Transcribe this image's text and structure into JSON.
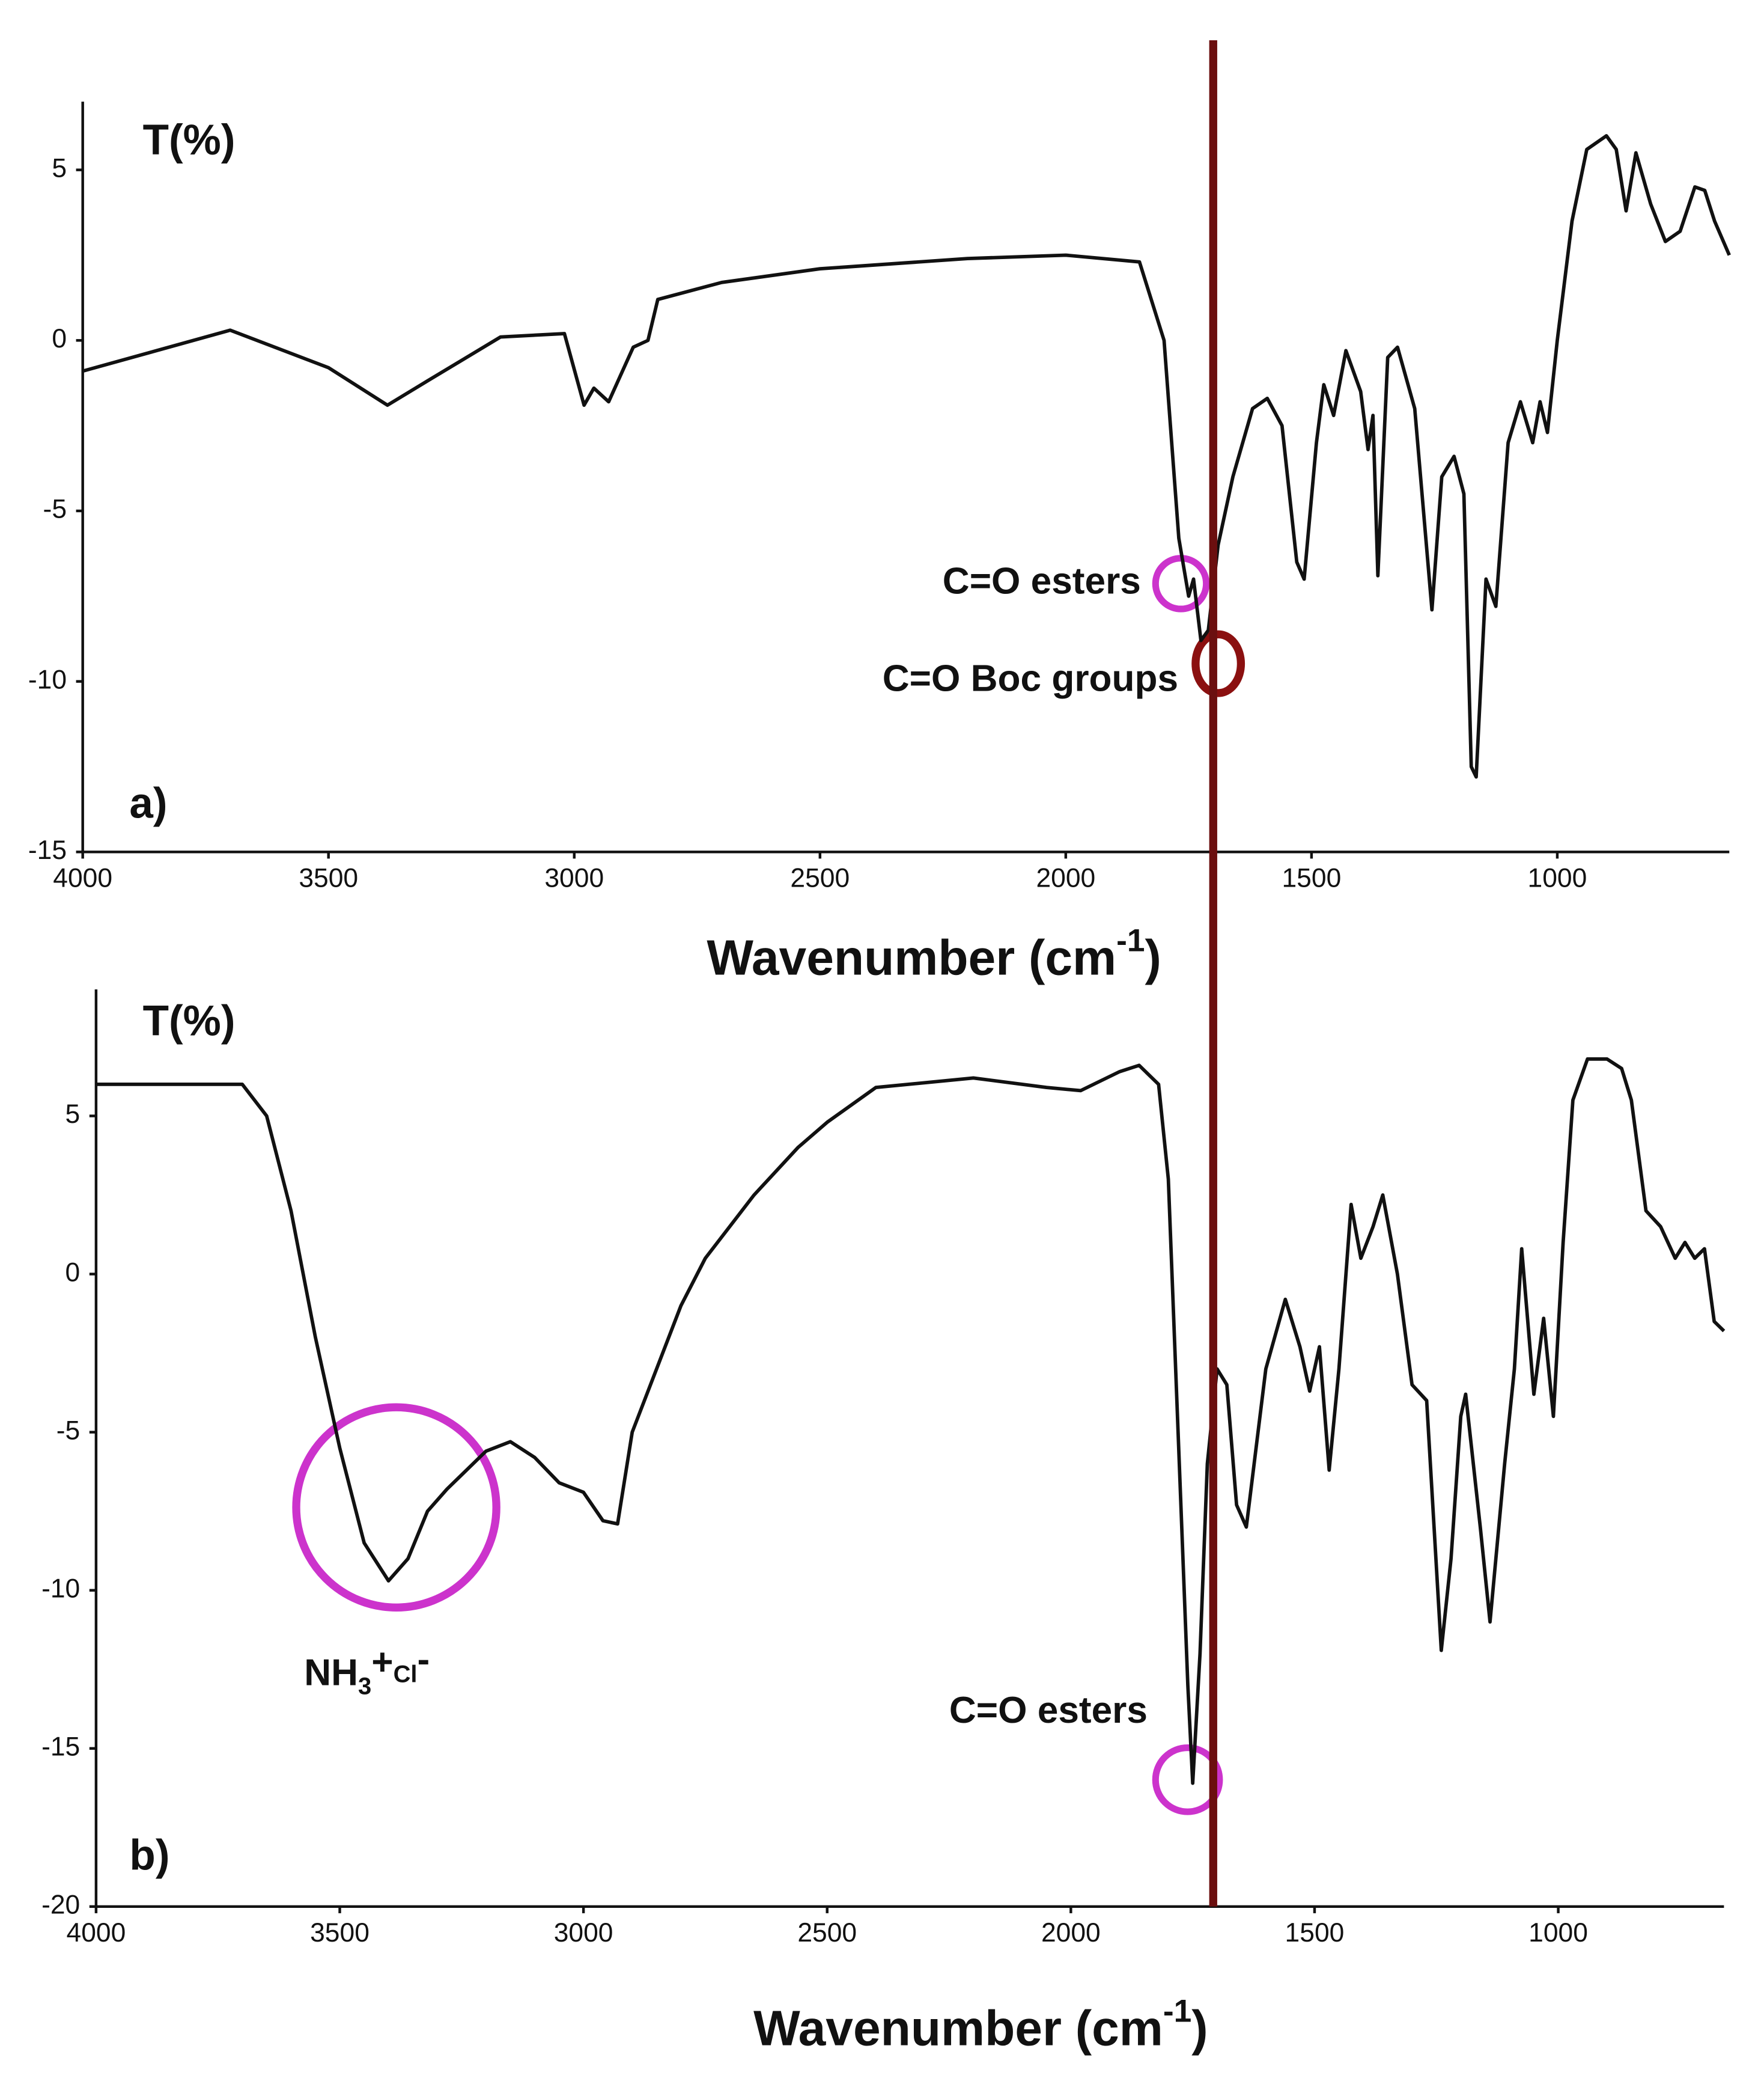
{
  "chart_data": [
    {
      "type": "line",
      "panel_label": "a)",
      "y_label": "T(%)",
      "x_label": {
        "main": "Wavenumber (cm",
        "sup": "-1",
        "end": ")"
      },
      "xlim": [
        4000,
        650
      ],
      "xticks": [
        4000,
        3500,
        3000,
        2500,
        2000,
        1500,
        1000
      ],
      "ylim": [
        -15,
        7
      ],
      "yticks": [
        -15,
        -10,
        -5,
        0,
        5
      ],
      "reference_line": {
        "x": 1700,
        "color": "#6b0f0f"
      },
      "annotations": [
        {
          "text": "C=O esters"
        },
        {
          "text": "C=O Boc groups"
        }
      ],
      "x": [
        4000,
        3700,
        3500,
        3380,
        3300,
        3150,
        3020,
        2980,
        2960,
        2930,
        2880,
        2850,
        2830,
        2700,
        2500,
        2200,
        2000,
        1850,
        1800,
        1770,
        1750,
        1740,
        1725,
        1710,
        1690,
        1660,
        1620,
        1590,
        1560,
        1530,
        1515,
        1490,
        1475,
        1455,
        1430,
        1400,
        1385,
        1375,
        1365,
        1345,
        1325,
        1290,
        1255,
        1235,
        1210,
        1190,
        1175,
        1165,
        1145,
        1125,
        1100,
        1075,
        1050,
        1035,
        1020,
        1000,
        970,
        940,
        900,
        880,
        860,
        840,
        810,
        780,
        750,
        720,
        700,
        680,
        650
      ],
      "color": "#111111",
      "values": [
        -0.9,
        0.3,
        -0.8,
        -1.9,
        -1.2,
        0.1,
        0.2,
        -1.9,
        -1.4,
        -1.8,
        -0.2,
        0,
        1.2,
        1.7,
        2.1,
        2.4,
        2.5,
        2.3,
        0,
        -5.8,
        -7.5,
        -7.0,
        -8.8,
        -8.5,
        -6,
        -4,
        -2,
        -1.7,
        -2.5,
        -6.5,
        -7.0,
        -3,
        -1.3,
        -2.2,
        -0.3,
        -1.5,
        -3.2,
        -2.2,
        -6.9,
        -0.5,
        -0.2,
        -2,
        -7.9,
        -4,
        -3.4,
        -4.5,
        -12.5,
        -12.8,
        -7,
        -7.8,
        -3,
        -1.8,
        -3,
        -1.8,
        -2.7,
        0,
        3.5,
        5.6,
        6.0,
        5.6,
        3.8,
        5.5,
        4.0,
        2.9,
        3.2,
        4.5,
        4.4,
        3.5,
        2.5
      ]
    },
    {
      "type": "line",
      "panel_label": "b)",
      "y_label": "T(%)",
      "x_label": {
        "main": "Wavenumber (cm",
        "sup": "-1",
        "end": ")"
      },
      "xlim": [
        4000,
        660
      ],
      "xticks": [
        4000,
        3500,
        3000,
        2500,
        2000,
        1500,
        1000
      ],
      "ylim": [
        -20,
        9
      ],
      "yticks": [
        -20,
        -15,
        -10,
        -5,
        0,
        5
      ],
      "annotations": [
        {
          "parts": [
            "NH",
            "3",
            "+",
            "Cl",
            "-"
          ]
        },
        {
          "text": "C=O esters"
        }
      ],
      "x": [
        4000,
        3700,
        3650,
        3600,
        3550,
        3500,
        3450,
        3400,
        3360,
        3320,
        3280,
        3200,
        3150,
        3100,
        3050,
        3000,
        2960,
        2930,
        2900,
        2850,
        2800,
        2750,
        2650,
        2560,
        2500,
        2400,
        2200,
        2050,
        1980,
        1900,
        1860,
        1820,
        1800,
        1780,
        1760,
        1750,
        1735,
        1720,
        1700,
        1680,
        1660,
        1640,
        1600,
        1560,
        1530,
        1510,
        1490,
        1470,
        1450,
        1425,
        1405,
        1380,
        1360,
        1330,
        1300,
        1270,
        1240,
        1220,
        1200,
        1190,
        1160,
        1140,
        1110,
        1090,
        1075,
        1050,
        1030,
        1010,
        990,
        970,
        940,
        900,
        870,
        850,
        820,
        790,
        760,
        740,
        720,
        700,
        680,
        660
      ],
      "color": "#111111",
      "values": [
        6,
        6,
        5,
        2,
        -2,
        -5.5,
        -8.5,
        -9.7,
        -9.0,
        -7.5,
        -6.8,
        -5.6,
        -5.3,
        -5.8,
        -6.6,
        -6.9,
        -7.8,
        -7.9,
        -5,
        -3,
        -1,
        0.5,
        2.5,
        4,
        4.8,
        5.9,
        6.2,
        5.9,
        5.8,
        6.4,
        6.6,
        6,
        3,
        -5,
        -13,
        -16.1,
        -12,
        -6,
        -3,
        -3.5,
        -7.3,
        -8,
        -3,
        -0.8,
        -2.3,
        -3.7,
        -2.3,
        -6.2,
        -3,
        2.2,
        0.5,
        1.5,
        2.5,
        0,
        -3.5,
        -4,
        -11.9,
        -9,
        -4.5,
        -3.8,
        -8,
        -11,
        -6,
        -3,
        0.8,
        -3.8,
        -1.4,
        -4.5,
        1,
        5.5,
        6.8,
        6.8,
        6.5,
        5.5,
        2,
        1.5,
        0.5,
        1,
        0.5,
        0.8,
        -1.5,
        -1.8
      ]
    }
  ]
}
